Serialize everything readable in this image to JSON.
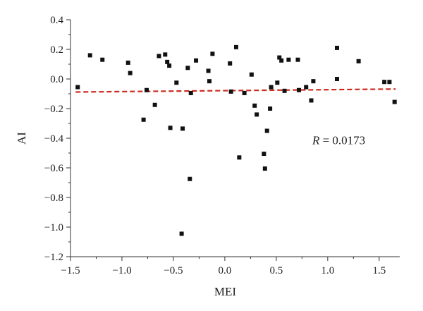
{
  "chart_data": {
    "type": "scatter",
    "xlabel": "MEI",
    "ylabel": "AI",
    "xlim": [
      -1.5,
      1.7
    ],
    "ylim": [
      -1.2,
      0.4
    ],
    "x_ticks": [
      -1.5,
      -1.0,
      -0.5,
      0.0,
      0.5,
      1.0,
      1.5
    ],
    "x_tick_labels": [
      "−1.5",
      "−1.0",
      "−0.5",
      "0.0",
      "0.5",
      "1.0",
      "1.5"
    ],
    "y_ticks": [
      0.4,
      0.2,
      0.0,
      -0.2,
      -0.4,
      -0.6,
      -0.8,
      -1.0,
      -1.2
    ],
    "y_tick_labels": [
      "0.4",
      "0.2",
      "0.0",
      "−0.2",
      "−0.4",
      "−0.6",
      "−0.8",
      "−1.0",
      "−1.2"
    ],
    "grid": false,
    "marker_color": "#111111",
    "trend_color": "#cc2a1f",
    "points": [
      [
        -1.43,
        -0.055
      ],
      [
        -1.31,
        0.16
      ],
      [
        -1.19,
        0.13
      ],
      [
        -0.94,
        0.11
      ],
      [
        -0.92,
        0.04
      ],
      [
        -0.79,
        -0.275
      ],
      [
        -0.76,
        -0.075
      ],
      [
        -0.68,
        -0.175
      ],
      [
        -0.64,
        0.155
      ],
      [
        -0.58,
        0.165
      ],
      [
        -0.56,
        0.115
      ],
      [
        -0.54,
        0.09
      ],
      [
        -0.53,
        -0.33
      ],
      [
        -0.47,
        -0.025
      ],
      [
        -0.42,
        -1.045
      ],
      [
        -0.41,
        -0.335
      ],
      [
        -0.36,
        0.075
      ],
      [
        -0.34,
        -0.675
      ],
      [
        -0.33,
        -0.095
      ],
      [
        -0.28,
        0.125
      ],
      [
        -0.16,
        0.055
      ],
      [
        -0.15,
        -0.015
      ],
      [
        -0.12,
        0.17
      ],
      [
        0.05,
        0.105
      ],
      [
        0.06,
        -0.085
      ],
      [
        0.11,
        0.215
      ],
      [
        0.14,
        -0.53
      ],
      [
        0.19,
        -0.095
      ],
      [
        0.26,
        0.03
      ],
      [
        0.29,
        -0.18
      ],
      [
        0.31,
        -0.24
      ],
      [
        0.38,
        -0.505
      ],
      [
        0.39,
        -0.605
      ],
      [
        0.41,
        -0.35
      ],
      [
        0.44,
        -0.2
      ],
      [
        0.45,
        -0.055
      ],
      [
        0.51,
        -0.025
      ],
      [
        0.53,
        0.145
      ],
      [
        0.55,
        0.125
      ],
      [
        0.58,
        -0.08
      ],
      [
        0.62,
        0.13
      ],
      [
        0.71,
        0.13
      ],
      [
        0.72,
        -0.075
      ],
      [
        0.79,
        -0.055
      ],
      [
        0.84,
        -0.145
      ],
      [
        0.86,
        -0.015
      ],
      [
        1.09,
        0.21
      ],
      [
        1.09,
        0.0
      ],
      [
        1.3,
        0.12
      ],
      [
        1.55,
        -0.02
      ],
      [
        1.6,
        -0.02
      ],
      [
        1.65,
        -0.155
      ]
    ],
    "trendline": {
      "x": [
        -1.45,
        1.66
      ],
      "y": [
        -0.088,
        -0.068
      ]
    },
    "annotation": {
      "variable": "R",
      "value": " = 0.0173",
      "x": 0.85,
      "y": -0.44
    }
  }
}
